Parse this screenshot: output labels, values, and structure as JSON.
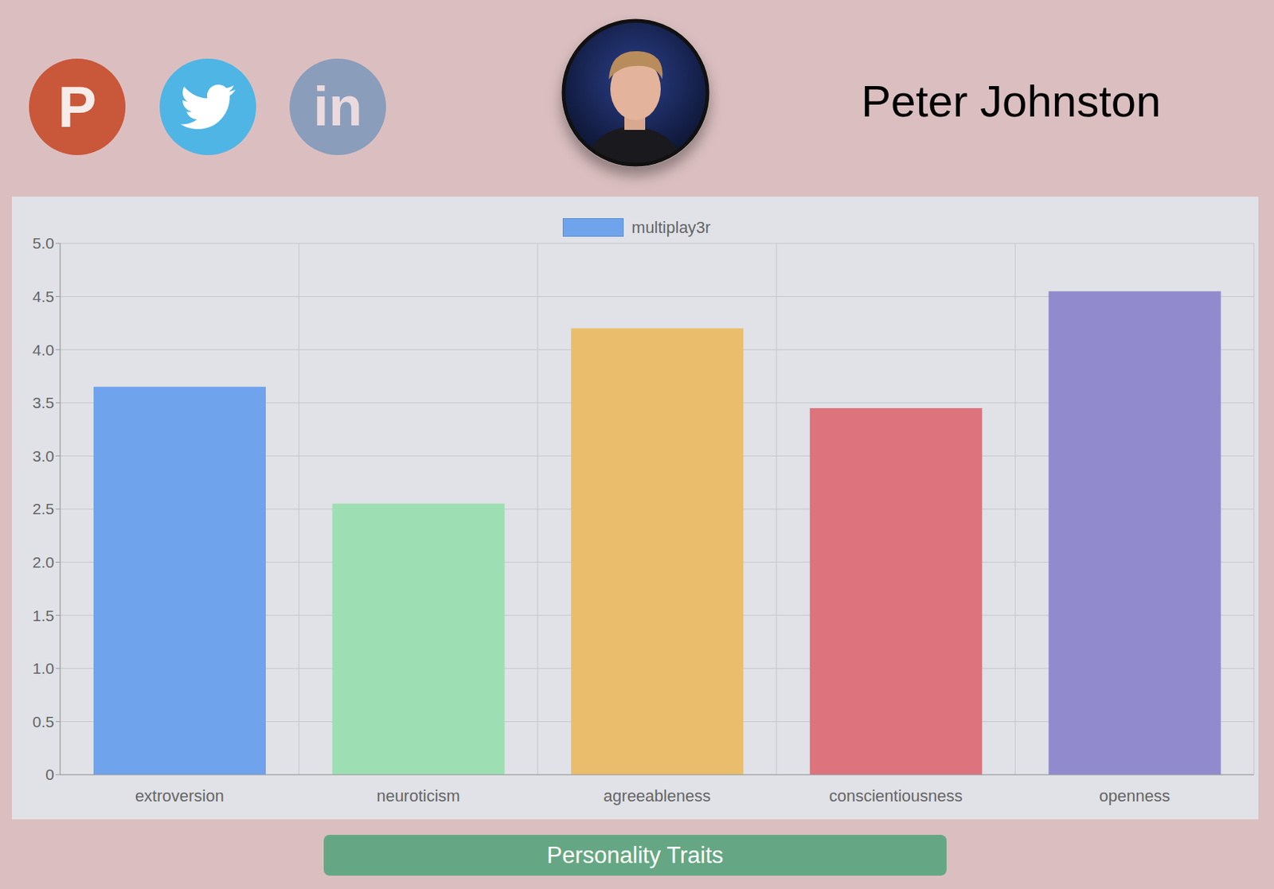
{
  "page": {
    "name": "Peter Johnston",
    "icons": [
      "P",
      "in"
    ],
    "button": "Personality Traits"
  },
  "chart_data": {
    "type": "bar",
    "categories": [
      "extroversion",
      "neuroticism",
      "agreeableness",
      "conscientiousness",
      "openness"
    ],
    "series": [
      {
        "name": "multiplay3r",
        "color": "#6fa3eb",
        "colors": [
          "#6fa3eb",
          "#9ddfb2",
          "#e9bd6b",
          "#dd737c",
          "#918bcd"
        ],
        "values": [
          3.65,
          2.55,
          4.2,
          3.45,
          4.55
        ]
      }
    ],
    "ylim": [
      0,
      5
    ],
    "yticks": [
      0,
      0.5,
      {
        "value": 1,
        "label": "1.0"
      },
      1.5,
      {
        "value": 2,
        "label": "2.0"
      },
      2.5,
      {
        "value": 3,
        "label": "3.0"
      },
      3.5,
      {
        "value": 4,
        "label": "4.0"
      },
      4.5,
      {
        "value": 5,
        "label": "5.0"
      }
    ],
    "grid": true,
    "legend": "top"
  }
}
